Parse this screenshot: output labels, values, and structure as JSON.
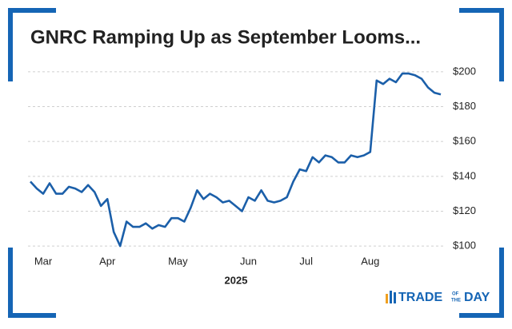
{
  "chart_data": {
    "type": "line",
    "title": "GNRC Ramping Up as September Looms...",
    "xlabel": "2025",
    "categories": [
      null,
      null,
      "Mar",
      null,
      null,
      null,
      null,
      null,
      null,
      null,
      null,
      null,
      "Apr",
      null,
      null,
      null,
      null,
      null,
      null,
      null,
      null,
      null,
      null,
      "May",
      null,
      null,
      null,
      null,
      null,
      null,
      null,
      null,
      null,
      null,
      "Jun",
      null,
      null,
      null,
      null,
      null,
      null,
      null,
      null,
      "Jul",
      null,
      null,
      null,
      null,
      null,
      null,
      null,
      null,
      null,
      "Aug",
      null,
      null,
      null,
      null,
      null,
      null,
      null,
      null,
      null,
      null,
      null
    ],
    "values": [
      137,
      133,
      130,
      136,
      130,
      130,
      134,
      133,
      131,
      135,
      131,
      123,
      127,
      108,
      100,
      114,
      111,
      111,
      113,
      110,
      112,
      111,
      116,
      116,
      114,
      122,
      132,
      127,
      130,
      128,
      125,
      126,
      123,
      120,
      128,
      126,
      132,
      126,
      125,
      126,
      128,
      137,
      144,
      143,
      151,
      148,
      152,
      151,
      148,
      148,
      152,
      151,
      152,
      154,
      195,
      193,
      196,
      194,
      199,
      199,
      198,
      196,
      191,
      188,
      187
    ],
    "color": "#1b5fa9",
    "ylim": [
      95,
      205
    ],
    "yticks": [
      {
        "value": 100,
        "label": "$100"
      },
      {
        "value": 120,
        "label": "$120"
      },
      {
        "value": 140,
        "label": "$140"
      },
      {
        "value": 160,
        "label": "$160"
      },
      {
        "value": 180,
        "label": "$180"
      },
      {
        "value": 200,
        "label": "$200"
      }
    ],
    "grid": true
  },
  "logo": {
    "word1": "TRADE",
    "word2a": "OF",
    "word2b": "THE",
    "word3": "DAY"
  }
}
